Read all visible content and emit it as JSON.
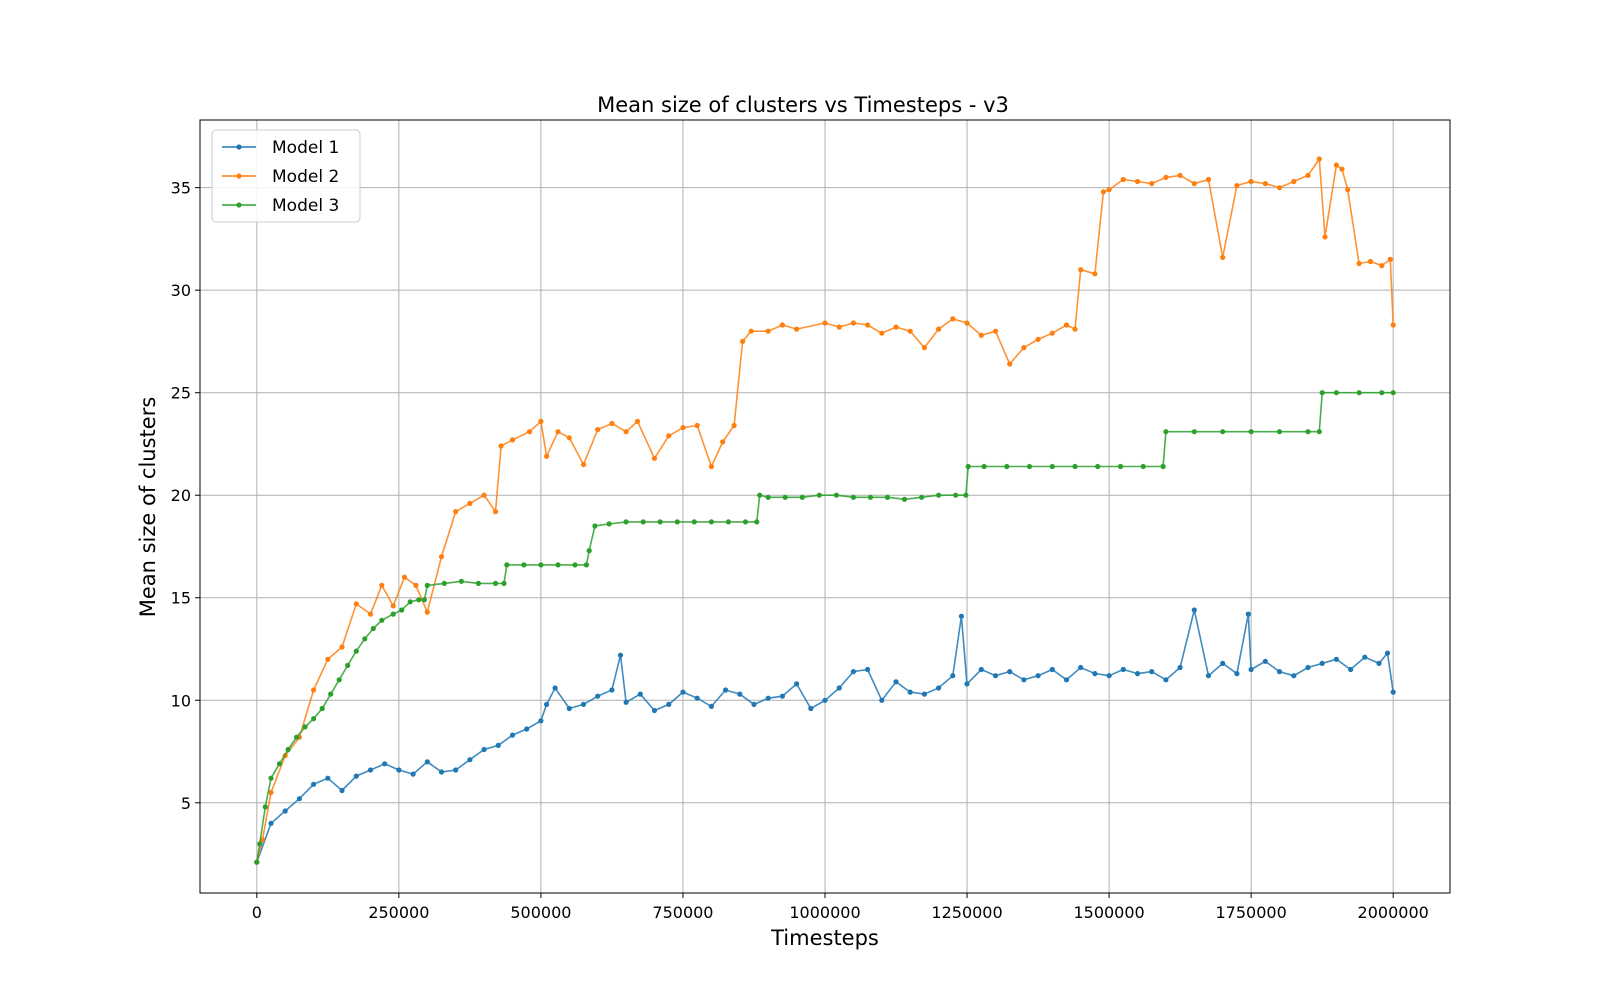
{
  "chart_data": {
    "type": "line",
    "title": "Mean size of clusters vs Timesteps - v3",
    "xlabel": "Timesteps",
    "ylabel": "Mean size of clusters",
    "xlim": [
      -100000,
      2100000
    ],
    "ylim": [
      0.6,
      38.3
    ],
    "xticks": [
      0,
      250000,
      500000,
      750000,
      1000000,
      1250000,
      1500000,
      1750000,
      2000000
    ],
    "xtick_labels": [
      "0",
      "250000",
      "500000",
      "750000",
      "1000000",
      "1250000",
      "1500000",
      "1750000",
      "2000000"
    ],
    "yticks": [
      5,
      10,
      15,
      20,
      25,
      30,
      35
    ],
    "ytick_labels": [
      "5",
      "10",
      "15",
      "20",
      "25",
      "30",
      "35"
    ],
    "grid": true,
    "legend": "top-left",
    "series": [
      {
        "name": "Model 1",
        "color": "#1f77b4",
        "x": [
          0,
          25000,
          50000,
          75000,
          100000,
          125000,
          150000,
          175000,
          200000,
          225000,
          250000,
          275000,
          300000,
          325000,
          350000,
          375000,
          400000,
          425000,
          450000,
          475000,
          500000,
          510000,
          525000,
          550000,
          575000,
          600000,
          625000,
          640000,
          650000,
          675000,
          700000,
          725000,
          750000,
          775000,
          800000,
          825000,
          850000,
          875000,
          900000,
          925000,
          950000,
          975000,
          1000000,
          1025000,
          1050000,
          1075000,
          1100000,
          1125000,
          1150000,
          1175000,
          1200000,
          1225000,
          1240000,
          1250000,
          1275000,
          1300000,
          1325000,
          1350000,
          1375000,
          1400000,
          1425000,
          1450000,
          1475000,
          1500000,
          1525000,
          1550000,
          1575000,
          1600000,
          1625000,
          1650000,
          1675000,
          1700000,
          1725000,
          1745000,
          1750000,
          1775000,
          1800000,
          1825000,
          1850000,
          1875000,
          1900000,
          1925000,
          1950000,
          1975000,
          1990000,
          2000000
        ],
        "y": [
          2.1,
          4.0,
          4.6,
          5.2,
          5.9,
          6.2,
          5.6,
          6.3,
          6.6,
          6.9,
          6.6,
          6.4,
          7.0,
          6.5,
          6.6,
          7.1,
          7.6,
          7.8,
          8.3,
          8.6,
          9.0,
          9.8,
          10.6,
          9.6,
          9.8,
          10.2,
          10.5,
          12.2,
          9.9,
          10.3,
          9.5,
          9.8,
          10.4,
          10.1,
          9.7,
          10.5,
          10.3,
          9.8,
          10.1,
          10.2,
          10.8,
          9.6,
          10.0,
          10.6,
          11.4,
          11.5,
          10.0,
          10.9,
          10.4,
          10.3,
          10.6,
          11.2,
          14.1,
          10.8,
          11.5,
          11.2,
          11.4,
          11.0,
          11.2,
          11.5,
          11.0,
          11.6,
          11.3,
          11.2,
          11.5,
          11.3,
          11.4,
          11.0,
          11.6,
          14.4,
          11.2,
          11.8,
          11.3,
          14.2,
          11.5,
          11.9,
          11.4,
          11.2,
          11.6,
          11.8,
          12.0,
          11.5,
          12.1,
          11.8,
          12.3,
          10.4
        ]
      },
      {
        "name": "Model 2",
        "color": "#ff7f0e",
        "x": [
          0,
          10000,
          25000,
          50000,
          75000,
          100000,
          125000,
          150000,
          175000,
          200000,
          220000,
          240000,
          260000,
          280000,
          300000,
          325000,
          350000,
          375000,
          400000,
          420000,
          430000,
          450000,
          480000,
          500000,
          510000,
          530000,
          550000,
          575000,
          600000,
          625000,
          650000,
          670000,
          700000,
          725000,
          750000,
          775000,
          800000,
          820000,
          840000,
          855000,
          870000,
          900000,
          925000,
          950000,
          1000000,
          1025000,
          1050000,
          1075000,
          1100000,
          1125000,
          1150000,
          1175000,
          1200000,
          1225000,
          1250000,
          1275000,
          1300000,
          1325000,
          1350000,
          1375000,
          1400000,
          1425000,
          1440000,
          1450000,
          1475000,
          1490000,
          1500000,
          1525000,
          1550000,
          1575000,
          1600000,
          1625000,
          1650000,
          1675000,
          1700000,
          1725000,
          1750000,
          1775000,
          1800000,
          1825000,
          1850000,
          1870000,
          1880000,
          1900000,
          1910000,
          1920000,
          1940000,
          1960000,
          1980000,
          1995000,
          2000000
        ],
        "y": [
          2.1,
          3.2,
          5.5,
          7.3,
          8.2,
          10.5,
          12.0,
          12.6,
          14.7,
          14.2,
          15.6,
          14.6,
          16.0,
          15.6,
          14.3,
          17.0,
          19.2,
          19.6,
          20.0,
          19.2,
          22.4,
          22.7,
          23.1,
          23.6,
          21.9,
          23.1,
          22.8,
          21.5,
          23.2,
          23.5,
          23.1,
          23.6,
          21.8,
          22.9,
          23.3,
          23.4,
          21.4,
          22.6,
          23.4,
          27.5,
          28.0,
          28.0,
          28.3,
          28.1,
          28.4,
          28.2,
          28.4,
          28.3,
          27.9,
          28.2,
          28.0,
          27.2,
          28.1,
          28.6,
          28.4,
          27.8,
          28.0,
          26.4,
          27.2,
          27.6,
          27.9,
          28.3,
          28.1,
          31.0,
          30.8,
          34.8,
          34.9,
          35.4,
          35.3,
          35.2,
          35.5,
          35.6,
          35.2,
          35.4,
          31.6,
          35.1,
          35.3,
          35.2,
          35.0,
          35.3,
          35.6,
          36.4,
          32.6,
          36.1,
          35.9,
          34.9,
          31.3,
          31.4,
          31.2,
          31.5,
          28.3
        ]
      },
      {
        "name": "Model 3",
        "color": "#2ca02c",
        "x": [
          0,
          5000,
          15000,
          25000,
          40000,
          55000,
          70000,
          85000,
          100000,
          115000,
          130000,
          145000,
          160000,
          175000,
          190000,
          205000,
          220000,
          240000,
          255000,
          270000,
          285000,
          295000,
          300000,
          330000,
          360000,
          390000,
          420000,
          435000,
          440000,
          470000,
          500000,
          530000,
          560000,
          580000,
          585000,
          595000,
          620000,
          650000,
          680000,
          710000,
          740000,
          770000,
          800000,
          830000,
          860000,
          880000,
          885000,
          900000,
          930000,
          960000,
          990000,
          1020000,
          1050000,
          1080000,
          1110000,
          1140000,
          1170000,
          1200000,
          1230000,
          1248000,
          1252000,
          1280000,
          1320000,
          1360000,
          1400000,
          1440000,
          1480000,
          1520000,
          1560000,
          1595000,
          1600000,
          1650000,
          1700000,
          1750000,
          1800000,
          1850000,
          1870000,
          1875000,
          1900000,
          1940000,
          1980000,
          2000000
        ],
        "y": [
          2.1,
          3.0,
          4.8,
          6.2,
          6.9,
          7.6,
          8.2,
          8.7,
          9.1,
          9.6,
          10.3,
          11.0,
          11.7,
          12.4,
          13.0,
          13.5,
          13.9,
          14.2,
          14.4,
          14.8,
          14.9,
          14.9,
          15.6,
          15.7,
          15.8,
          15.7,
          15.7,
          15.7,
          16.6,
          16.6,
          16.6,
          16.6,
          16.6,
          16.6,
          17.3,
          18.5,
          18.6,
          18.7,
          18.7,
          18.7,
          18.7,
          18.7,
          18.7,
          18.7,
          18.7,
          18.7,
          20.0,
          19.9,
          19.9,
          19.9,
          20.0,
          20.0,
          19.9,
          19.9,
          19.9,
          19.8,
          19.9,
          20.0,
          20.0,
          20.0,
          21.4,
          21.4,
          21.4,
          21.4,
          21.4,
          21.4,
          21.4,
          21.4,
          21.4,
          21.4,
          23.1,
          23.1,
          23.1,
          23.1,
          23.1,
          23.1,
          23.1,
          25.0,
          25.0,
          25.0,
          25.0,
          25.0
        ]
      }
    ]
  }
}
